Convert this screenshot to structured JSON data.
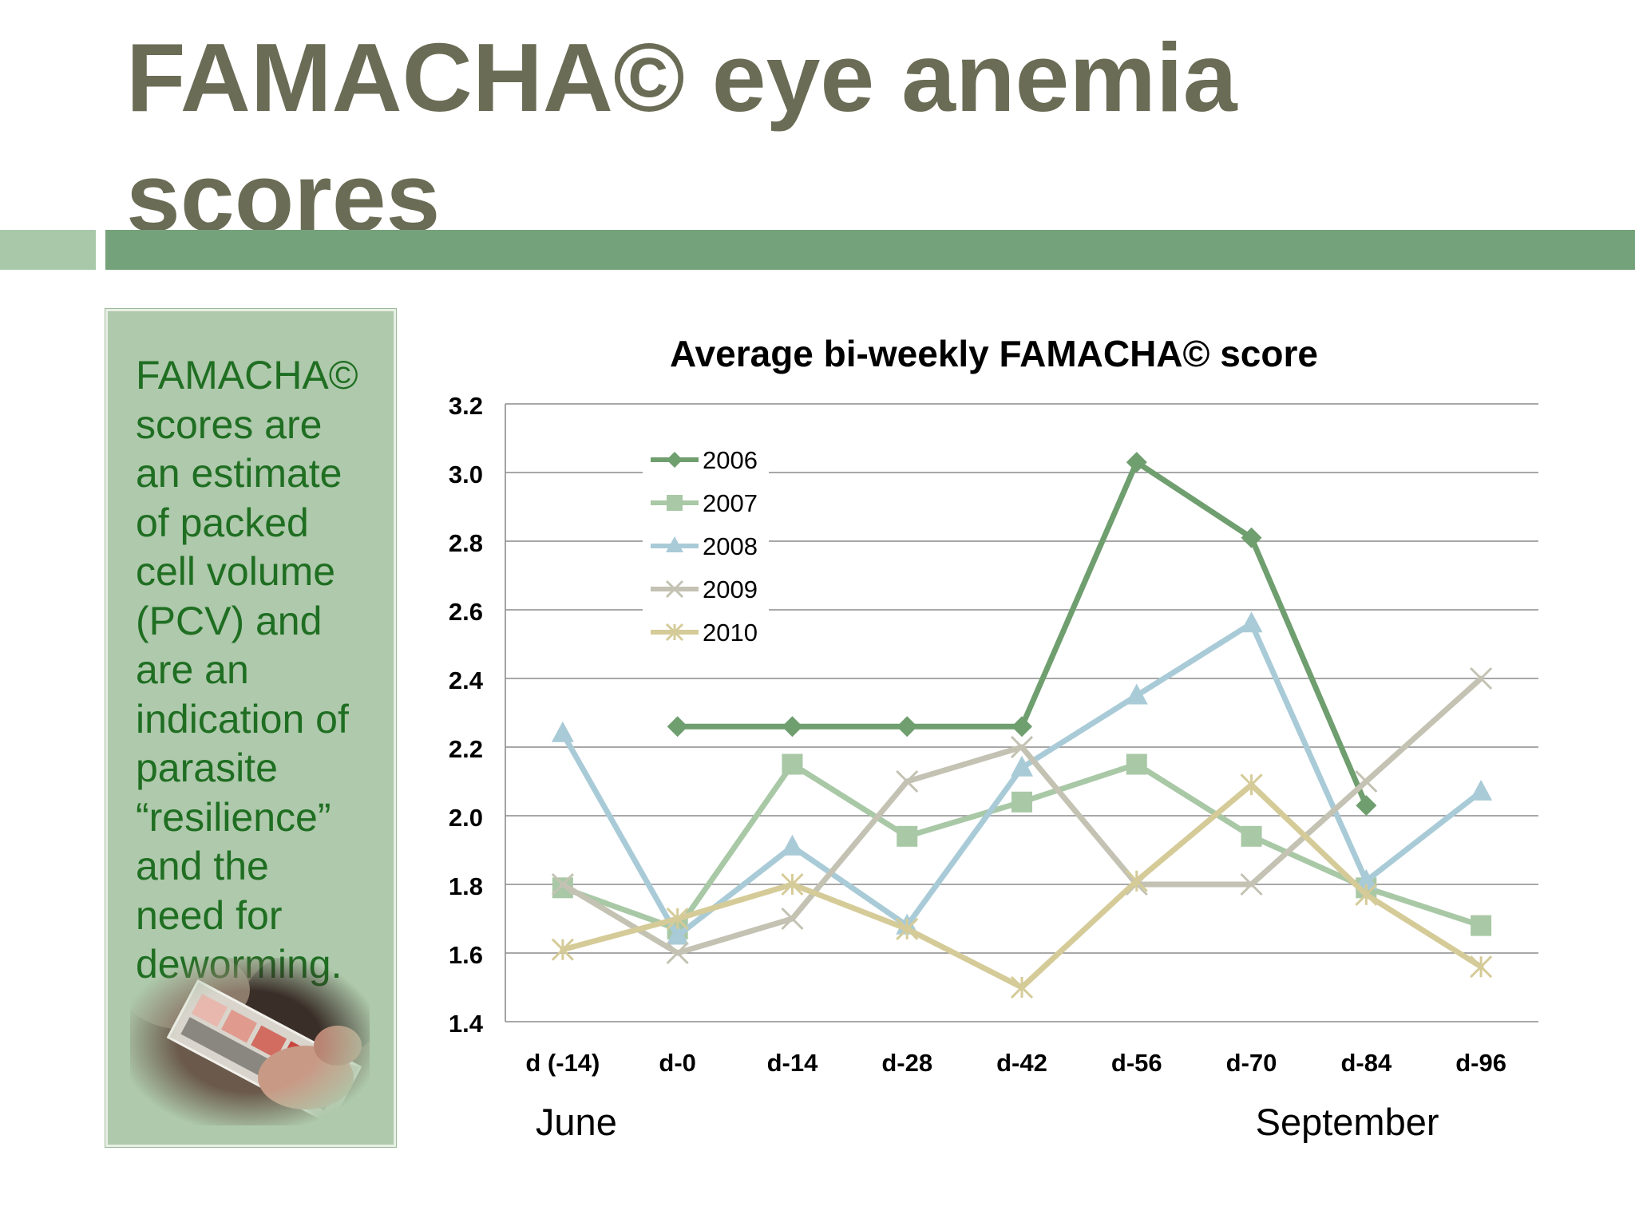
{
  "slide": {
    "title": "FAMACHA© eye anemia scores",
    "side_text": "FAMACHA©\nscores are\nan estimate\nof packed\ncell volume\n(PCV) and\nare an\nindication of\nparasite\n“resilience”\nand the\nneed for\ndeworming.",
    "photo_icon": "famacha-card-photo"
  },
  "colors": {
    "title": "#6a6c55",
    "accent_bar": "#74a27a",
    "accent_bar_light": "#a9c8a9",
    "side_box": "#aec9ab",
    "side_text": "#1f6e22"
  },
  "chart_data": {
    "type": "line",
    "title": "Average bi-weekly FAMACHA© score",
    "xlabel": "",
    "ylabel": "",
    "categories": [
      "d (-14)",
      "d-0",
      "d-14",
      "d-28",
      "d-42",
      "d-56",
      "d-70",
      "d-84",
      "d-96"
    ],
    "ylim": [
      1.4,
      3.2
    ],
    "yticks": [
      "1.4",
      "1.6",
      "1.8",
      "2.0",
      "2.2",
      "2.4",
      "2.6",
      "2.8",
      "3.0",
      "3.2"
    ],
    "grid": true,
    "legend_position": "top-left",
    "month_labels": [
      {
        "text": "June",
        "category": "d (-14)"
      },
      {
        "text": "September",
        "category": "d-70"
      }
    ],
    "series": [
      {
        "name": "2006",
        "color": "#6f9e6f",
        "marker": "diamond",
        "values": [
          null,
          2.26,
          2.26,
          2.26,
          2.26,
          3.03,
          2.81,
          2.03,
          null
        ]
      },
      {
        "name": "2007",
        "color": "#a8c8a6",
        "marker": "square",
        "values": [
          1.79,
          1.67,
          2.15,
          1.94,
          2.04,
          2.15,
          1.94,
          1.79,
          1.68
        ]
      },
      {
        "name": "2008",
        "color": "#a9cbd7",
        "marker": "triangle",
        "values": [
          2.24,
          1.65,
          1.91,
          1.68,
          2.14,
          2.35,
          2.56,
          1.81,
          2.07
        ]
      },
      {
        "name": "2009",
        "color": "#c3c2b3",
        "marker": "x",
        "values": [
          1.8,
          1.6,
          1.7,
          2.1,
          2.2,
          1.8,
          1.8,
          2.1,
          2.4
        ]
      },
      {
        "name": "2010",
        "color": "#d5cb98",
        "marker": "star",
        "values": [
          1.61,
          1.7,
          1.8,
          1.67,
          1.5,
          1.81,
          2.09,
          1.77,
          1.56
        ]
      }
    ]
  }
}
